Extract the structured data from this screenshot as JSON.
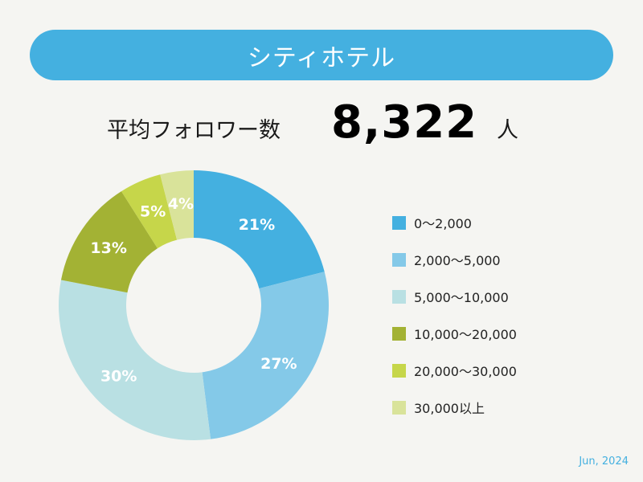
{
  "header": {
    "title": "シティホテル"
  },
  "stat": {
    "label": "平均フォロワー数",
    "value": "8,322",
    "unit": "人"
  },
  "chart_data": {
    "type": "pie",
    "donut": true,
    "categories": [
      "0〜2,000",
      "2,000〜5,000",
      "5,000〜10,000",
      "10,000〜20,000",
      "20,000〜30,000",
      "30,000以上"
    ],
    "values": [
      21,
      27,
      30,
      13,
      5,
      4
    ],
    "data_labels": [
      "21%",
      "27%",
      "30%",
      "13%",
      "5%",
      "4%"
    ],
    "colors": [
      "#44b0e0",
      "#84c9e8",
      "#b9e0e3",
      "#a3b234",
      "#c6d64a",
      "#d9e39a"
    ],
    "legend_position": "right"
  },
  "footer": {
    "date": "Jun, 2024"
  }
}
